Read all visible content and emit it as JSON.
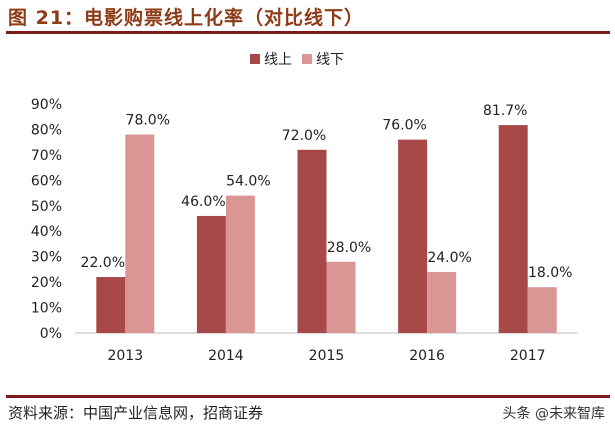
{
  "title": "图 21：电影购票线上化率（对比线下）",
  "source": "资料来源：中国产业信息网，招商证券",
  "watermark": "头条 @未来智库",
  "chart_data": {
    "type": "bar",
    "categories": [
      "2013",
      "2014",
      "2015",
      "2016",
      "2017"
    ],
    "series": [
      {
        "name": "线上",
        "values": [
          22.0,
          46.0,
          72.0,
          76.0,
          81.7
        ],
        "labels": [
          "22.0%",
          "46.0%",
          "72.0%",
          "76.0%",
          "81.7%"
        ],
        "color": "#a94848"
      },
      {
        "name": "线下",
        "values": [
          78.0,
          54.0,
          28.0,
          24.0,
          18.0
        ],
        "labels": [
          "78.0%",
          "54.0%",
          "28.0%",
          "24.0%",
          "18.0%"
        ],
        "color": "#d99695"
      }
    ],
    "ylim": [
      0,
      90
    ],
    "yticks": [
      "0%",
      "10%",
      "20%",
      "30%",
      "40%",
      "50%",
      "60%",
      "70%",
      "80%",
      "90%"
    ],
    "legend": "top-center",
    "grid": false
  }
}
